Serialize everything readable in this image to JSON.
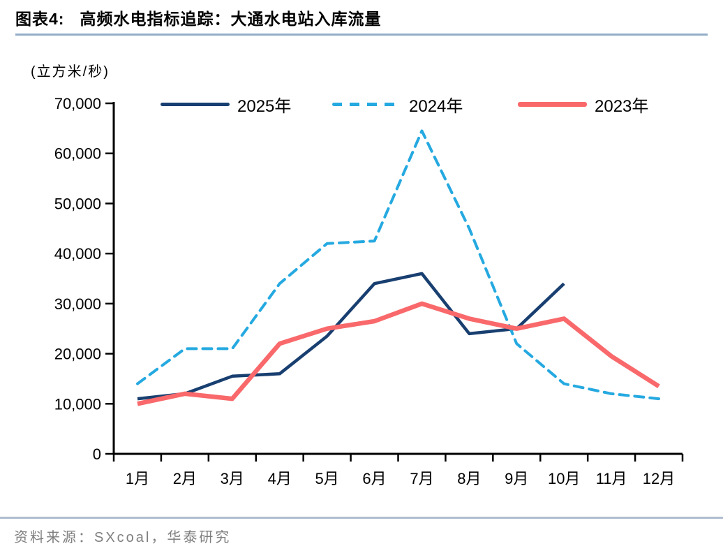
{
  "header": {
    "figure_label": "图表4:",
    "title": "高频水电指标追踪：大通水电站入库流量"
  },
  "chart": {
    "unit_label": "(立方米/秒)"
  },
  "footer": {
    "source_note": "资料来源：SXcoal，华泰研究"
  },
  "colors": {
    "title_rule": "#94ADC8",
    "footer_rule": "#AFBDD0",
    "source_text": "#7F7F7F",
    "axis": "#000000"
  },
  "chart_data": {
    "type": "line",
    "title": "大通水电站入库流量",
    "unit": "立方米/秒",
    "categories": [
      "1月",
      "2月",
      "3月",
      "4月",
      "5月",
      "6月",
      "7月",
      "8月",
      "9月",
      "10月",
      "11月",
      "12月"
    ],
    "series": [
      {
        "name": "2025年",
        "color": "#183F70",
        "style": "solid",
        "stroke_width": 4.5,
        "values": [
          11000,
          12000,
          15500,
          16000,
          23500,
          34000,
          36000,
          24000,
          25000,
          34000,
          null,
          null
        ]
      },
      {
        "name": "2024年",
        "color": "#25A9E0",
        "style": "dashed",
        "stroke_width": 4,
        "values": [
          14000,
          21000,
          21000,
          34000,
          42000,
          42500,
          64500,
          45000,
          22000,
          14000,
          12000,
          11000
        ]
      },
      {
        "name": "2023年",
        "color": "#F9696B",
        "style": "solid",
        "stroke_width": 6.5,
        "values": [
          10000,
          12000,
          11000,
          22000,
          25000,
          26500,
          30000,
          27000,
          25000,
          27000,
          19500,
          13500
        ]
      }
    ],
    "ylim": [
      0,
      70000
    ],
    "ytick_step": 10000,
    "ytick_labels": [
      "0",
      "10,000",
      "20,000",
      "30,000",
      "40,000",
      "50,000",
      "60,000",
      "70,000"
    ],
    "legend_position": "top",
    "grid": false
  }
}
